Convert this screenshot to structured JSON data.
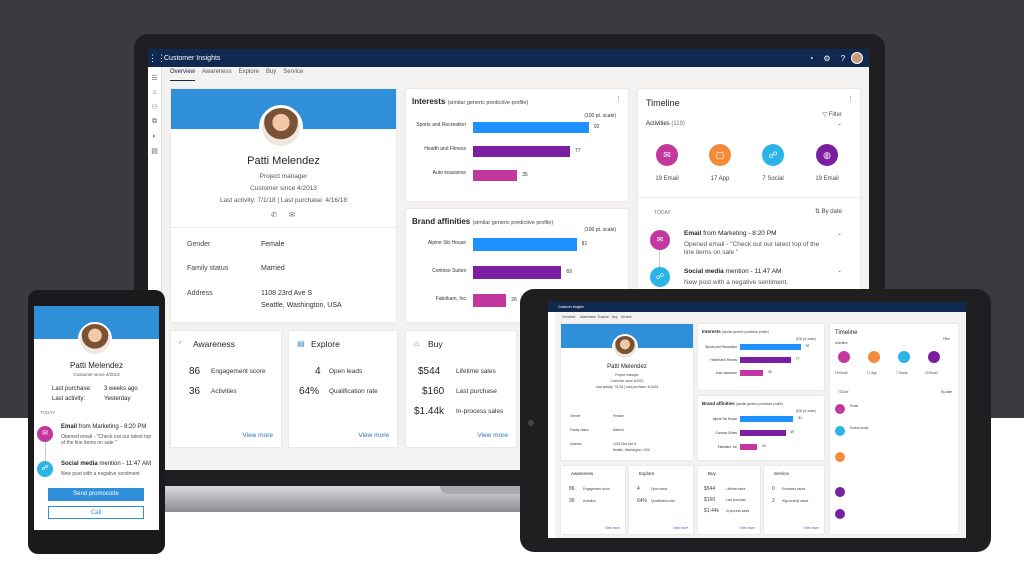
{
  "app": {
    "title": "Customer Insights"
  },
  "tabs": [
    "Overview",
    "Awareness",
    "Explore",
    "Buy",
    "Service"
  ],
  "profile": {
    "name": "Patti Melendez",
    "role": "Project manager",
    "since": "Customer since 4/2013",
    "activity": "Last activity: 7/1/18  |  Last purchase: 4/16/18",
    "fields": [
      {
        "key": "Gender",
        "value": "Female"
      },
      {
        "key": "Family status",
        "value": "Married"
      },
      {
        "key": "Address",
        "value": "1108 23rd Ave S",
        "value2": "Seattle, Washington, USA"
      }
    ]
  },
  "interests": {
    "title": "Interests",
    "subtitle": "(similar generic predictive profile)",
    "scale": "(100 pt. scale)",
    "rows": [
      {
        "label": "Sports and Recreation",
        "value": 92,
        "color": "#1e90ff"
      },
      {
        "label": "Health and Fitness",
        "value": 77,
        "color": "#7a1fa2"
      },
      {
        "label": "Auto insurance",
        "value": 35,
        "color": "#c2389e"
      }
    ]
  },
  "brand": {
    "title": "Brand affinities",
    "subtitle": "(similar generic predictive profile)",
    "scale": "(100 pt. scale)",
    "rows": [
      {
        "label": "Alpine Ski House",
        "value": 81,
        "color": "#1e90ff"
      },
      {
        "label": "Contoso Suites",
        "value": 69,
        "color": "#7a1fa2"
      },
      {
        "label": "Fabrikam, Inc",
        "value": 26,
        "color": "#c2389e"
      }
    ]
  },
  "awareness": {
    "title": "Awareness",
    "rows": [
      {
        "num": "86",
        "label": "Engagement score"
      },
      {
        "num": "36",
        "label": "Activities"
      }
    ],
    "more": "View more"
  },
  "explore": {
    "title": "Explore",
    "rows": [
      {
        "num": "4",
        "label": "Open leads"
      },
      {
        "num": "64%",
        "label": "Qualification rate"
      }
    ],
    "more": "View more"
  },
  "buy": {
    "title": "Buy",
    "rows": [
      {
        "num": "$544",
        "label": "Lifetime sales"
      },
      {
        "num": "$160",
        "label": "Last purchase"
      },
      {
        "num": "$1.44k",
        "label": "In-process sales"
      }
    ],
    "more": "View more"
  },
  "timeline": {
    "title": "Timeline",
    "filter": "Filter",
    "activities": "Activities",
    "count": "(119)",
    "types": [
      {
        "label": "19 Email",
        "color": "#c2389e",
        "icon": "✉"
      },
      {
        "label": "17 App",
        "color": "#f28c3c",
        "icon": "▢"
      },
      {
        "label": "7 Social",
        "color": "#2bb5e6",
        "icon": "☍"
      },
      {
        "label": "19 Email",
        "color": "#7a1fa2",
        "icon": "◍"
      }
    ],
    "today": "TODAY",
    "sort": "By date",
    "items": [
      {
        "title_a": "Email",
        "title_b": " from Marketing",
        "time": " - 8:20 PM",
        "sub": "Opened  email - \"Check out our latest top of the line items on sale \"",
        "color": "#c2389e"
      },
      {
        "title_a": "Social media",
        "title_b": " mention",
        "time": " - 11:47 AM",
        "sub": "New post with a negative sentiment.",
        "color": "#2bb5e6"
      }
    ]
  },
  "phone": {
    "name": "Patti Melendez",
    "since": "Customer since 4/2013",
    "last_purchase_label": "Last purchase:",
    "last_purchase": "3 weeks ago",
    "last_activity_label": "Last activity:",
    "last_activity": "Yesterday",
    "today": "TODAY",
    "email_title": "Email",
    "email_from": " from Marketing",
    "email_time": " - 8:20 PM",
    "email_sub": "Opened email - \"Check out our latest top of the line items on sale \"",
    "social_title": "Social media",
    "social_mention": " mention",
    "social_time": " - 11:47 AM",
    "social_sub": "New post with a negative sentiment",
    "btn_primary": "Send promocode",
    "btn_secondary": "Call"
  },
  "tablet": {
    "app_title": "Customer Insights",
    "service": "Service",
    "s_rows": [
      {
        "num": "0",
        "label": "Escalated cases"
      },
      {
        "num": "2",
        "label": "High activity cases"
      }
    ],
    "more": "View more"
  }
}
